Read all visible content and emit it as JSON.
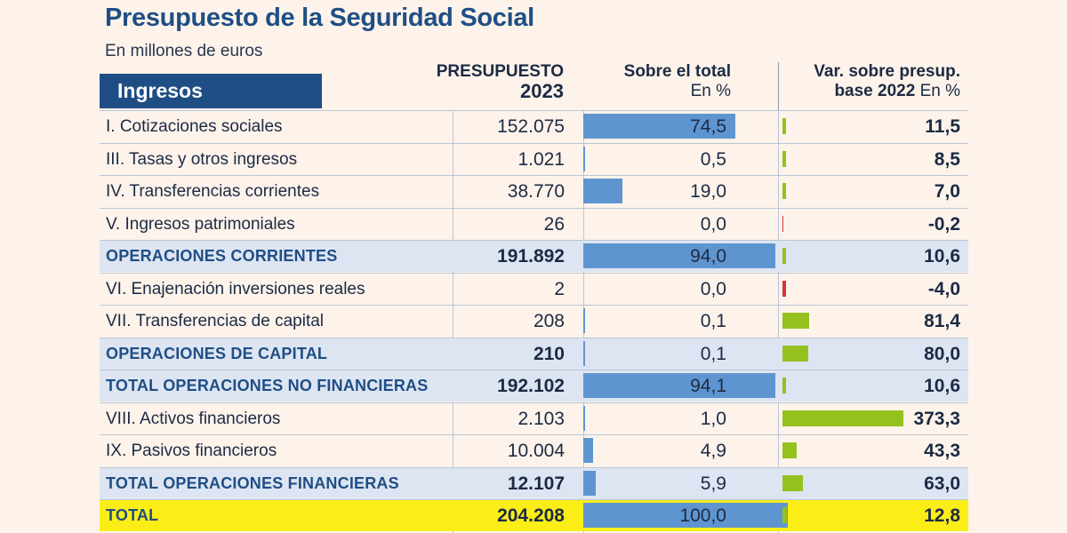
{
  "title": "Presupuesto de la Seguridad Social",
  "subtitle": "En millones de euros",
  "section": "Ingresos",
  "columns": {
    "presupuesto_line1": "PRESUPUESTO",
    "presupuesto_line2": "2023",
    "total_line1": "Sobre el total",
    "total_line2": "En %",
    "var_line1": "Var. sobre presup.",
    "var_line2a": "base 2022",
    "var_line2b": " En %"
  },
  "colors": {
    "title": "#1f4e85",
    "share_bar": "#5e95d0",
    "var_bar": "#95c11f",
    "neg_bar": "#d8343c",
    "total_row": "#fbee17",
    "emph_row": "#dde5f2"
  },
  "chart_data": {
    "type": "table",
    "title": "Presupuesto de la Seguridad Social",
    "unit": "En millones de euros",
    "rows": [
      {
        "label": "I. Cotizaciones sociales",
        "presupuesto": "152.075",
        "share": 74.5,
        "share_text": "74,5",
        "var": 11.5,
        "var_text": "11,5",
        "kind": "normal"
      },
      {
        "label": "III. Tasas y otros ingresos",
        "presupuesto": "1.021",
        "share": 0.5,
        "share_text": "0,5",
        "var": 8.5,
        "var_text": "8,5",
        "kind": "normal"
      },
      {
        "label": "IV. Transferencias corrientes",
        "presupuesto": "38.770",
        "share": 19.0,
        "share_text": "19,0",
        "var": 7.0,
        "var_text": "7,0",
        "kind": "normal"
      },
      {
        "label": "V. Ingresos patrimoniales",
        "presupuesto": "26",
        "share": 0.0,
        "share_text": "0,0",
        "var": -0.2,
        "var_text": "-0,2",
        "kind": "normal"
      },
      {
        "label": "OPERACIONES CORRIENTES",
        "presupuesto": "191.892",
        "share": 94.0,
        "share_text": "94,0",
        "var": 10.6,
        "var_text": "10,6",
        "kind": "emph"
      },
      {
        "label": "VI. Enajenación inversiones reales",
        "presupuesto": "2",
        "share": 0.0,
        "share_text": "0,0",
        "var": -4.0,
        "var_text": "-4,0",
        "kind": "normal"
      },
      {
        "label": "VII. Transferencias de capital",
        "presupuesto": "208",
        "share": 0.1,
        "share_text": "0,1",
        "var": 81.4,
        "var_text": "81,4",
        "kind": "normal"
      },
      {
        "label": "OPERACIONES DE CAPITAL",
        "presupuesto": "210",
        "share": 0.1,
        "share_text": "0,1",
        "var": 80.0,
        "var_text": "80,0",
        "kind": "emph"
      },
      {
        "label": "TOTAL OPERACIONES NO FINANCIERAS",
        "presupuesto": "192.102",
        "share": 94.1,
        "share_text": "94,1",
        "var": 10.6,
        "var_text": "10,6",
        "kind": "emph"
      },
      {
        "label": "VIII. Activos financieros",
        "presupuesto": "2.103",
        "share": 1.0,
        "share_text": "1,0",
        "var": 373.3,
        "var_text": "373,3",
        "kind": "normal"
      },
      {
        "label": "IX. Pasivos financieros",
        "presupuesto": "10.004",
        "share": 4.9,
        "share_text": "4,9",
        "var": 43.3,
        "var_text": "43,3",
        "kind": "normal"
      },
      {
        "label": "TOTAL OPERACIONES FINANCIERAS",
        "presupuesto": "12.107",
        "share": 5.9,
        "share_text": "5,9",
        "var": 63.0,
        "var_text": "63,0",
        "kind": "emph"
      },
      {
        "label": "TOTAL",
        "presupuesto": "204.208",
        "share": 100.0,
        "share_text": "100,0",
        "var": 12.8,
        "var_text": "12,8",
        "kind": "total"
      }
    ]
  }
}
